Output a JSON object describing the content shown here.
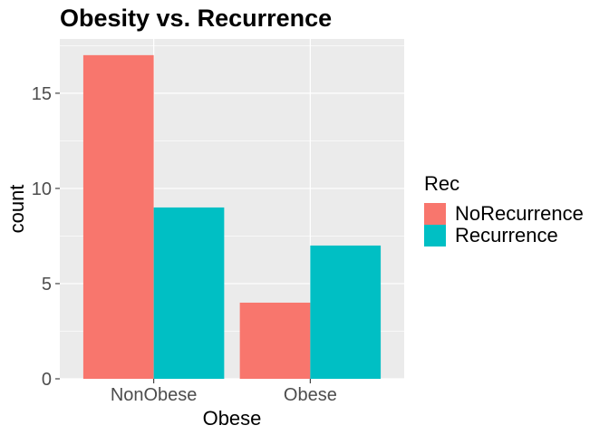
{
  "chart_data": {
    "type": "bar",
    "title": "Obesity vs. Recurrence",
    "xlabel": "Obese",
    "ylabel": "count",
    "categories": [
      "NonObese",
      "Obese"
    ],
    "series": [
      {
        "name": "NoRecurrence",
        "values": [
          17,
          4
        ],
        "color": "#F8766D"
      },
      {
        "name": "Recurrence",
        "values": [
          9,
          7
        ],
        "color": "#00BFC4"
      }
    ],
    "ylim": [
      0,
      17.85
    ],
    "yticks": [
      0,
      5,
      10,
      15
    ],
    "grid": true,
    "legend": {
      "title": "Rec",
      "position": "right"
    },
    "colors": {
      "panel": "#EBEBEB",
      "grid_major": "#FFFFFF",
      "tick_text": "#4D4D4D"
    }
  }
}
